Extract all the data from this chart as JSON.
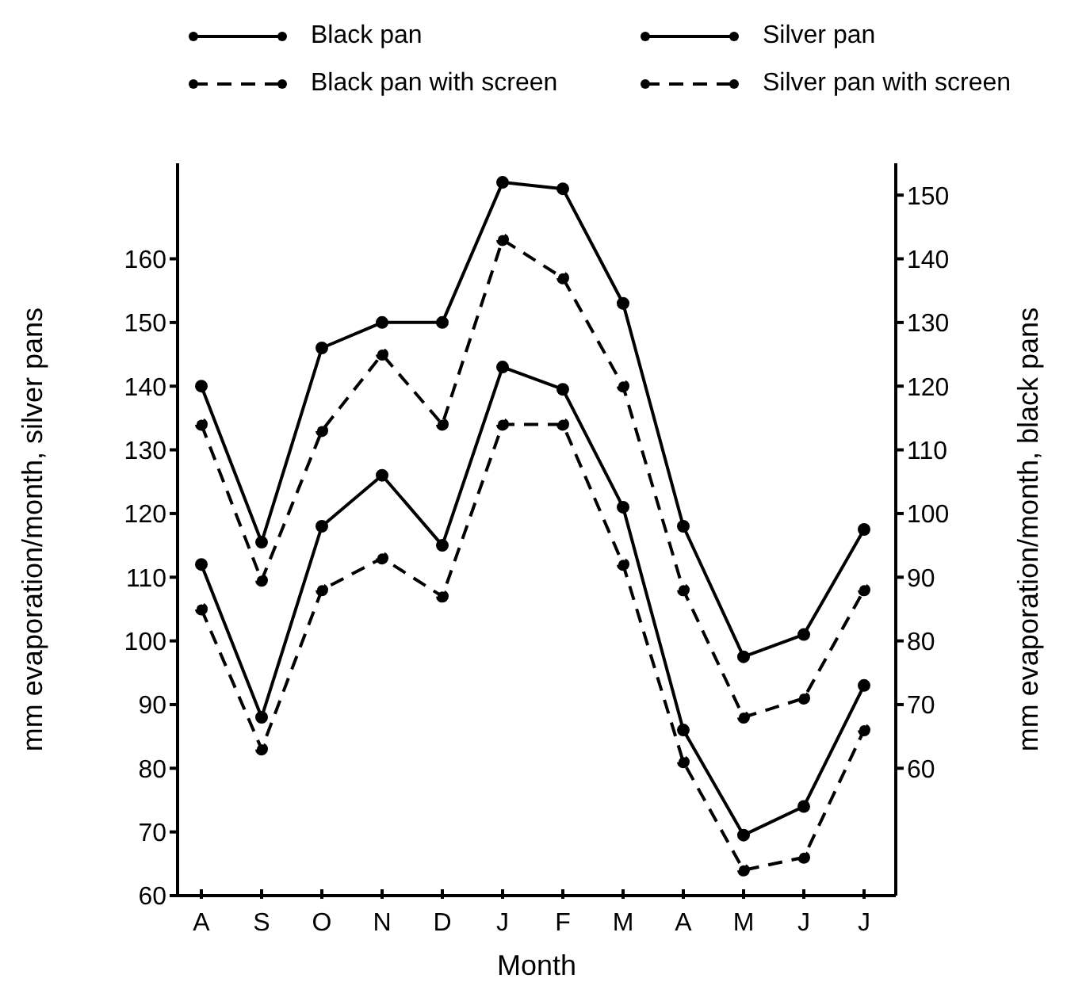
{
  "chart_data": {
    "type": "line",
    "xlabel": "Month",
    "categories": [
      "A",
      "S",
      "O",
      "N",
      "D",
      "J",
      "F",
      "M",
      "A",
      "M",
      "J",
      "J"
    ],
    "ylabel": "mm evaporation/month, silver pans",
    "y2label": "mm evaporation/month, black pans",
    "ylim": [
      60,
      175
    ],
    "yticks": [
      60,
      70,
      80,
      90,
      100,
      110,
      120,
      130,
      140,
      150,
      160
    ],
    "y2lim": [
      40,
      155
    ],
    "y2ticks": [
      60,
      70,
      80,
      90,
      100,
      110,
      120,
      130,
      140,
      150
    ],
    "series": [
      {
        "name": "Black pan",
        "color": "#000000",
        "line_style": "solid",
        "axis": "y2",
        "values": [
          120,
          95.5,
          126,
          130,
          130,
          152,
          151,
          133,
          98,
          77.5,
          81,
          97.5
        ]
      },
      {
        "name": "Black pan with screen",
        "color": "#000000",
        "line_style": "dashed",
        "axis": "y2",
        "values": [
          114,
          89.5,
          113,
          125,
          114,
          143,
          137,
          120,
          88,
          68,
          71,
          88
        ]
      },
      {
        "name": "Silver pan",
        "color": "#000000",
        "line_style": "solid",
        "values": [
          112,
          88,
          118,
          126,
          115,
          143,
          139.5,
          121,
          86,
          69.5,
          74,
          93
        ]
      },
      {
        "name": "Silver pan with screen",
        "color": "#000000",
        "line_style": "dashed",
        "values": [
          105,
          83,
          108,
          113,
          107,
          134,
          134,
          112,
          81,
          64,
          66,
          86
        ]
      }
    ],
    "marker": "circle",
    "grid": false,
    "legend": "top"
  }
}
